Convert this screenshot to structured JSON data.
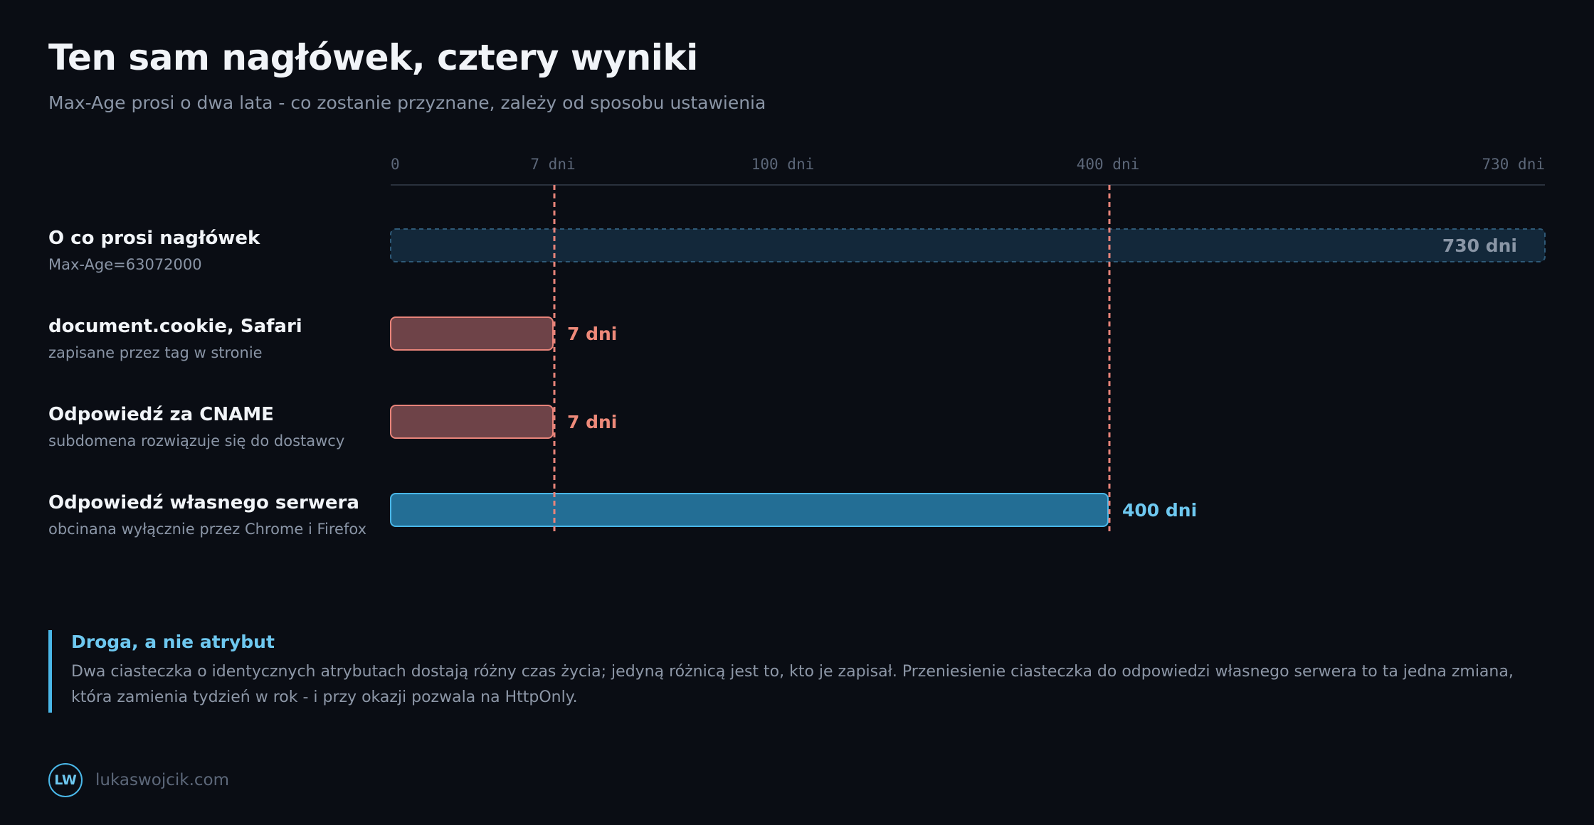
{
  "header": {
    "title": "Ten sam nagłówek, cztery wyniki",
    "subtitle": "Max-Age prosi o dwa lata - co zostanie przyznane, zależy od sposobu ustawienia"
  },
  "chart_data": {
    "type": "bar",
    "orientation": "horizontal",
    "x_unit": "dni",
    "xlim": [
      0,
      730
    ],
    "x_scale": "piecewise",
    "ticks": [
      {
        "value": 0,
        "label": "0"
      },
      {
        "value": 7,
        "label": "7 dni"
      },
      {
        "value": 100,
        "label": "100 dni"
      },
      {
        "value": 400,
        "label": "400 dni"
      },
      {
        "value": 730,
        "label": "730 dni"
      }
    ],
    "reference_lines": [
      7,
      400
    ],
    "bars": [
      {
        "label": "O co prosi nagłówek",
        "sublabel": "Max-Age=63072000",
        "value": 730,
        "value_label": "730 dni",
        "style": "requested"
      },
      {
        "label": "document.cookie, Safari",
        "sublabel": "zapisane przez tag w stronie",
        "value": 7,
        "value_label": "7 dni",
        "style": "capped"
      },
      {
        "label": "Odpowiedź za CNAME",
        "sublabel": "subdomena rozwiązuje się do dostawcy",
        "value": 7,
        "value_label": "7 dni",
        "style": "capped"
      },
      {
        "label": "Odpowiedź własnego serwera",
        "sublabel": "obcinana wyłącznie przez Chrome i Firefox",
        "value": 400,
        "value_label": "400 dni",
        "style": "server"
      }
    ],
    "colors": {
      "requested_fill": "#13283a",
      "requested_stroke": "#2f5a78",
      "requested_text": "#8a96a6",
      "capped_fill": "#6e4348",
      "capped_stroke": "#e8847a",
      "capped_text": "#ee8a7a",
      "server_fill": "#236e95",
      "server_stroke": "#4ab7e8",
      "server_text": "#6ec8f0",
      "reference_line": "#e8847a",
      "tick_text": "#5c6779",
      "axis_line": "#2a313d"
    }
  },
  "callout": {
    "title": "Droga, a nie atrybut",
    "body": "Dwa ciasteczka o identycznych atrybutach dostają różny czas życia; jedyną różnicą jest to, kto je zapisał. Przeniesienie ciasteczka do odpowiedzi własnego serwera to ta jedna zmiana, która zamienia tydzień w rok - i przy okazji pozwala na HttpOnly."
  },
  "footer": {
    "logo_text": "LW",
    "site": "lukaswojcik.com"
  }
}
